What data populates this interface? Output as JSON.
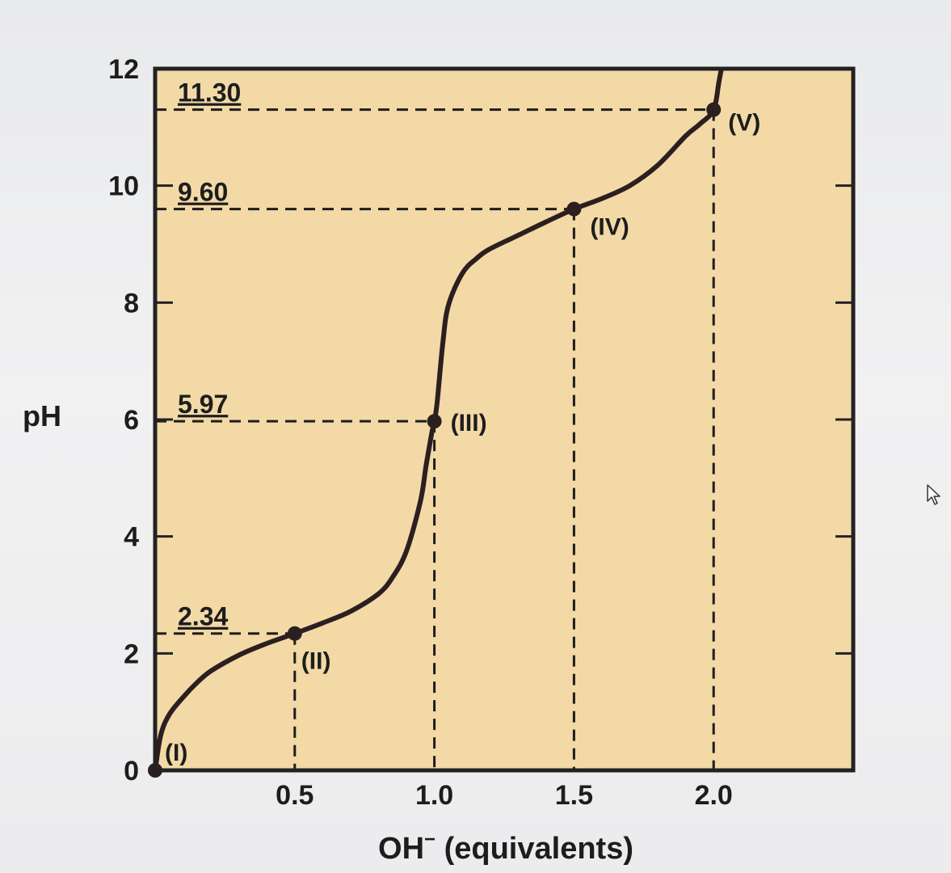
{
  "chart_data": {
    "type": "line",
    "xlabel": "OH",
    "xlabel_sup": "−",
    "xlabel_suffix": "(equivalents)",
    "ylabel": "pH",
    "xlim": [
      0,
      2.5
    ],
    "ylim": [
      0,
      12
    ],
    "x_ticks": [
      0.5,
      1.0,
      1.5,
      2.0
    ],
    "x_tick_labels": [
      "0.5",
      "1.0",
      "1.5",
      "2.0"
    ],
    "y_ticks": [
      0,
      2,
      4,
      6,
      8,
      10,
      12
    ],
    "y_tick_labels": [
      "0",
      "2",
      "4",
      "6",
      "8",
      "10",
      "12"
    ],
    "grid": false,
    "colors": {
      "plot_bg": "#f2d9a6",
      "curve": "#2c1f1f",
      "text": "#1d1d1d"
    },
    "series": [
      {
        "x": [
          0.0,
          0.02,
          0.05,
          0.1,
          0.15,
          0.2,
          0.3,
          0.4,
          0.5,
          0.6,
          0.7,
          0.8,
          0.85,
          0.9,
          0.95,
          0.97,
          0.99,
          1.0,
          1.01,
          1.03,
          1.05,
          1.1,
          1.15,
          1.2,
          1.3,
          1.4,
          1.5,
          1.6,
          1.7,
          1.8,
          1.9,
          1.95,
          2.0,
          2.02,
          2.04
        ],
        "y": [
          0.0,
          0.6,
          0.95,
          1.25,
          1.5,
          1.7,
          1.97,
          2.17,
          2.34,
          2.52,
          2.72,
          3.02,
          3.3,
          3.75,
          4.6,
          5.2,
          5.75,
          5.97,
          6.3,
          7.3,
          7.95,
          8.5,
          8.75,
          8.92,
          9.15,
          9.38,
          9.6,
          9.78,
          10.0,
          10.35,
          10.85,
          11.05,
          11.3,
          11.8,
          12.3
        ]
      }
    ],
    "points": [
      {
        "label": "(I)",
        "x": 0.0,
        "y": 0.0
      },
      {
        "label": "(II)",
        "x": 0.5,
        "y": 2.34
      },
      {
        "label": "(III)",
        "x": 1.0,
        "y": 5.97
      },
      {
        "label": "(IV)",
        "x": 1.5,
        "y": 9.6
      },
      {
        "label": "(V)",
        "x": 2.0,
        "y": 11.3
      }
    ],
    "reference_lines": [
      {
        "label": "11.30",
        "y": 11.3,
        "x_end": 2.0
      },
      {
        "label": "9.60",
        "y": 9.6,
        "x_end": 1.5
      },
      {
        "label": "5.97",
        "y": 5.97,
        "x_end": 1.0
      },
      {
        "label": "2.34",
        "y": 2.34,
        "x_end": 0.5
      }
    ]
  }
}
